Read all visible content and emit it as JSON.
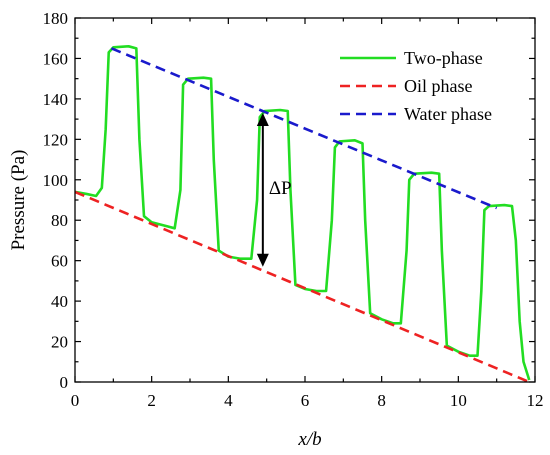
{
  "chart_data": {
    "type": "line",
    "xlabel": "x/b",
    "ylabel": "Pressure (Pa)",
    "xlim": [
      0,
      12
    ],
    "ylim": [
      0,
      180
    ],
    "xticks": [
      0,
      2,
      4,
      6,
      8,
      10,
      12
    ],
    "yticks": [
      0,
      20,
      40,
      60,
      80,
      100,
      120,
      140,
      160,
      180
    ],
    "grid": false,
    "legend_position": "top-right",
    "series": [
      {
        "name": "Two-phase",
        "color": "#22dd22",
        "style": "solid",
        "points": [
          [
            0,
            94
          ],
          [
            0.3,
            93
          ],
          [
            0.55,
            92
          ],
          [
            0.7,
            96
          ],
          [
            0.8,
            125
          ],
          [
            0.88,
            163
          ],
          [
            1.0,
            165.5
          ],
          [
            1.4,
            166
          ],
          [
            1.6,
            165
          ],
          [
            1.68,
            120
          ],
          [
            1.8,
            82
          ],
          [
            2.0,
            79
          ],
          [
            2.4,
            77
          ],
          [
            2.6,
            76
          ],
          [
            2.75,
            95
          ],
          [
            2.82,
            147
          ],
          [
            2.95,
            150
          ],
          [
            3.35,
            150.5
          ],
          [
            3.55,
            150
          ],
          [
            3.62,
            110
          ],
          [
            3.75,
            65
          ],
          [
            4.0,
            62
          ],
          [
            4.3,
            61
          ],
          [
            4.6,
            61
          ],
          [
            4.75,
            90
          ],
          [
            4.82,
            131
          ],
          [
            4.95,
            134
          ],
          [
            5.35,
            134.5
          ],
          [
            5.55,
            134
          ],
          [
            5.62,
            95
          ],
          [
            5.75,
            48
          ],
          [
            6.0,
            46
          ],
          [
            6.3,
            45
          ],
          [
            6.55,
            45
          ],
          [
            6.7,
            80
          ],
          [
            6.78,
            116
          ],
          [
            6.9,
            119
          ],
          [
            7.3,
            119.5
          ],
          [
            7.5,
            118
          ],
          [
            7.57,
            80
          ],
          [
            7.7,
            34
          ],
          [
            8.0,
            31
          ],
          [
            8.3,
            29
          ],
          [
            8.5,
            29
          ],
          [
            8.65,
            65
          ],
          [
            8.72,
            100
          ],
          [
            8.85,
            103
          ],
          [
            9.3,
            103.5
          ],
          [
            9.5,
            103
          ],
          [
            9.57,
            65
          ],
          [
            9.7,
            18
          ],
          [
            10.0,
            15
          ],
          [
            10.3,
            13
          ],
          [
            10.5,
            13
          ],
          [
            10.6,
            45
          ],
          [
            10.68,
            85
          ],
          [
            10.8,
            87
          ],
          [
            11.2,
            87.5
          ],
          [
            11.4,
            87
          ],
          [
            11.5,
            70
          ],
          [
            11.6,
            30
          ],
          [
            11.7,
            10
          ],
          [
            11.85,
            1
          ]
        ]
      },
      {
        "name": "Oil phase",
        "color": "#ee2222",
        "style": "dashed",
        "points": [
          [
            0,
            94
          ],
          [
            11.85,
            0
          ]
        ]
      },
      {
        "name": "Water phase",
        "color": "#1a1acc",
        "style": "dashed",
        "points": [
          [
            0.95,
            165
          ],
          [
            11.0,
            86
          ]
        ]
      }
    ],
    "annotation": {
      "text": "ΔP",
      "arrow_x": 4.9,
      "arrow_y_from": 57,
      "arrow_y_to": 133
    }
  }
}
